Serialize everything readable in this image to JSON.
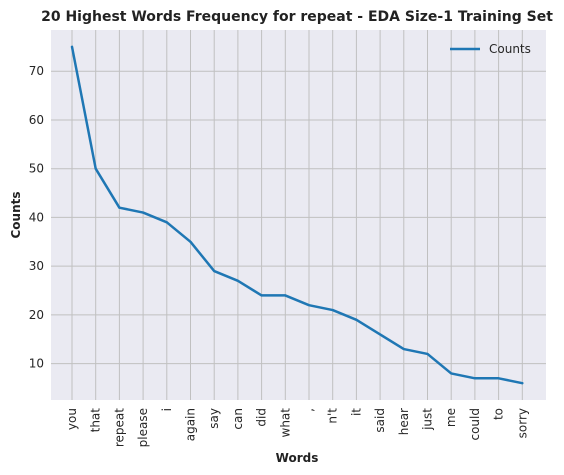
{
  "chart_data": {
    "type": "line",
    "title": "20 Highest Words Frequency for repeat - EDA Size-1 Training Set",
    "xlabel": "Words",
    "ylabel": "Counts",
    "categories": [
      "you",
      "that",
      "repeat",
      "please",
      "i",
      "again",
      "say",
      "can",
      "did",
      "what",
      ",",
      "n't",
      "it",
      "said",
      "hear",
      "just",
      "me",
      "could",
      "to",
      "sorry"
    ],
    "series": [
      {
        "name": "Counts",
        "values": [
          75,
          50,
          42,
          41,
          39,
          35,
          29,
          27,
          24,
          24,
          22,
          21,
          19,
          16,
          13,
          12,
          8,
          7,
          7,
          6
        ],
        "color": "#1f77b4"
      }
    ],
    "yticks": [
      10,
      20,
      30,
      40,
      50,
      60,
      70
    ],
    "ylim": [
      2.55,
      78.45
    ],
    "grid": true,
    "legend": "top-right",
    "background_color": "#eaeaf2",
    "grid_color": "#c0c0c0"
  }
}
